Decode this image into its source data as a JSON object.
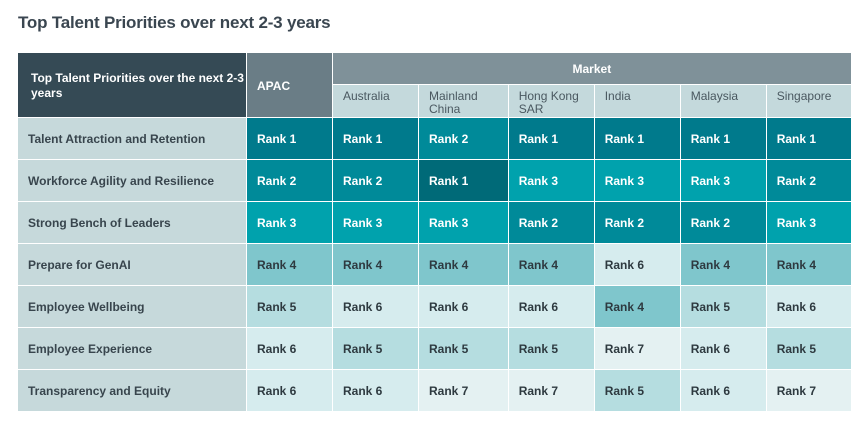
{
  "title": "Top Talent Priorities over next 2-3 years",
  "table": {
    "corner_label": "Top Talent Priorities over the next 2-3 years",
    "apac_label": "APAC",
    "market_label": "Market",
    "markets": [
      "Australia",
      "Mainland China",
      "Hong Kong SAR",
      "India",
      "Malaysia",
      "Singapore"
    ],
    "rows": [
      {
        "label": "Talent Attraction and Retention",
        "apac": "Rank 1",
        "cells": [
          "Rank 1",
          "Rank 2",
          "Rank 1",
          "Rank 1",
          "Rank 1",
          "Rank 1"
        ]
      },
      {
        "label": "Workforce Agility and Resilience",
        "apac": "Rank 2",
        "cells": [
          "Rank 2",
          "Rank 1",
          "Rank 3",
          "Rank 3",
          "Rank 3",
          "Rank 2"
        ]
      },
      {
        "label": "Strong Bench of Leaders",
        "apac": "Rank 3",
        "cells": [
          "Rank 3",
          "Rank 3",
          "Rank 2",
          "Rank 2",
          "Rank 2",
          "Rank 3"
        ]
      },
      {
        "label": "Prepare for GenAI",
        "apac": "Rank 4",
        "cells": [
          "Rank 4",
          "Rank 4",
          "Rank 4",
          "Rank 6",
          "Rank 4",
          "Rank 4"
        ]
      },
      {
        "label": "Employee Wellbeing",
        "apac": "Rank 5",
        "cells": [
          "Rank 6",
          "Rank 6",
          "Rank 6",
          "Rank 4",
          "Rank 5",
          "Rank 6"
        ]
      },
      {
        "label": "Employee Experience",
        "apac": "Rank 6",
        "cells": [
          "Rank 5",
          "Rank 5",
          "Rank 5",
          "Rank 7",
          "Rank 6",
          "Rank 5"
        ]
      },
      {
        "label": "Transparency and Equity",
        "apac": "Rank 6",
        "cells": [
          "Rank 6",
          "Rank 7",
          "Rank 7",
          "Rank 5",
          "Rank 6",
          "Rank 7"
        ]
      }
    ]
  }
}
